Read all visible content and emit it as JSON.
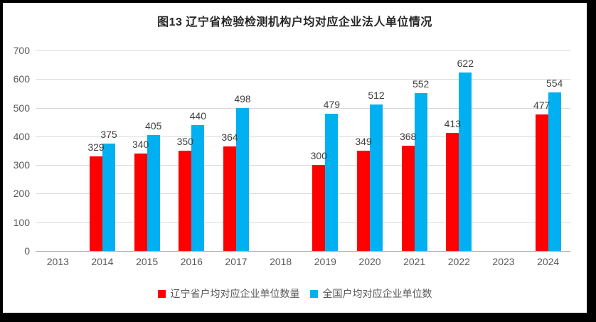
{
  "title": "图13 辽宁省检验检测机构户均对应企业法人单位情况",
  "frame": {
    "border_color": "#000000",
    "background_color": "#ffffff"
  },
  "colors": {
    "series_liaoning": "#ff0000",
    "series_national": "#00b0f0",
    "gridline": "#d9d9d9",
    "axis_line": "#a6a6a6",
    "axis_text": "#595959",
    "value_label_text": "#3f3f3f",
    "title_text": "#262626"
  },
  "chart_data": {
    "type": "bar",
    "title": "图13 辽宁省检验检测机构户均对应企业法人单位情况",
    "categories": [
      "2013",
      "2014",
      "2015",
      "2016",
      "2017",
      "2018",
      "2019",
      "2020",
      "2021",
      "2022",
      "2023",
      "2024"
    ],
    "series": [
      {
        "key": "liaoning",
        "name": "辽宁省户均对应企业单位数量",
        "color": "#ff0000",
        "values": [
          null,
          329,
          340,
          350,
          364,
          null,
          300,
          349,
          368,
          413,
          null,
          477
        ]
      },
      {
        "key": "national",
        "name": "全国户均对应企业单位数",
        "color": "#00b0f0",
        "values": [
          null,
          375,
          405,
          440,
          498,
          null,
          479,
          512,
          552,
          622,
          null,
          554
        ]
      }
    ],
    "xlabel": "",
    "ylabel": "",
    "ylim": [
      0,
      700
    ],
    "yticks": [
      0,
      100,
      200,
      300,
      400,
      500,
      600,
      700
    ],
    "grid": "horizontal",
    "legend_position": "bottom",
    "data_labels": "outside-end"
  }
}
